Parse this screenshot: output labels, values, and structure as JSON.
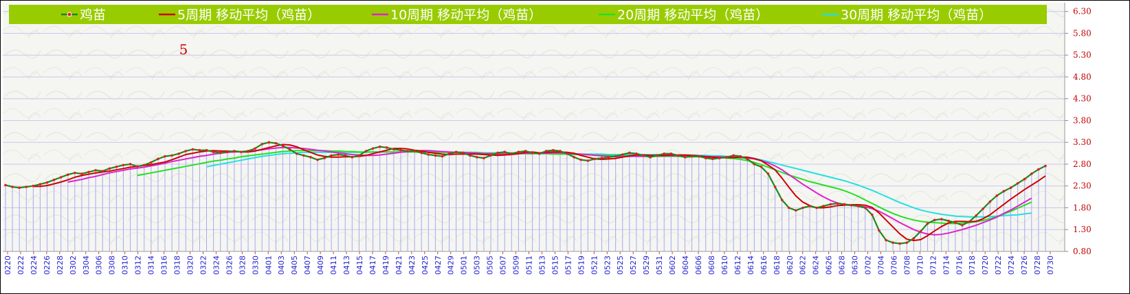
{
  "chart_data": {
    "type": "line",
    "title": "",
    "xlabel": "",
    "ylabel": "",
    "ylim": [
      0.8,
      6.5
    ],
    "y_ticks": [
      "0.80",
      "1.30",
      "1.80",
      "2.30",
      "2.80",
      "3.30",
      "3.80",
      "4.30",
      "4.80",
      "5.30",
      "5.80",
      "6.30"
    ],
    "y_tick_values": [
      0.8,
      1.3,
      1.8,
      2.3,
      2.8,
      3.3,
      3.8,
      4.3,
      4.8,
      5.3,
      5.8,
      6.3
    ],
    "grid": true,
    "legend_position": "top",
    "annotation": "5",
    "x_tick_labels": [
      "0220",
      "0222",
      "0224",
      "0226",
      "0228",
      "0302",
      "0304",
      "0306",
      "0308",
      "0310",
      "0312",
      "0314",
      "0316",
      "0318",
      "0320",
      "0322",
      "0324",
      "0326",
      "0328",
      "0330",
      "0401",
      "0403",
      "0405",
      "0407",
      "0409",
      "0411",
      "0413",
      "0415",
      "0417",
      "0419",
      "0421",
      "0423",
      "0425",
      "0427",
      "0429",
      "0501",
      "0503",
      "0505",
      "0507",
      "0509",
      "0511",
      "0513",
      "0515",
      "0517",
      "0519",
      "0521",
      "0523",
      "0525",
      "0527",
      "0529",
      "0531",
      "0602",
      "0604",
      "0606",
      "0608",
      "0610",
      "0612",
      "0614",
      "0616",
      "0618",
      "0620",
      "0622",
      "0624",
      "0626",
      "0628",
      "0630",
      "0702",
      "0704",
      "0706",
      "0708",
      "0710",
      "0712",
      "0714",
      "0716",
      "0718",
      "0720",
      "0722",
      "0724",
      "0726",
      "0728",
      "0730"
    ],
    "series": [
      {
        "name": "鸡苗",
        "color": "#1a8a1a",
        "marker_color": "#e02020",
        "values": [
          2.32,
          2.28,
          2.26,
          2.28,
          2.3,
          2.34,
          2.38,
          2.44,
          2.5,
          2.56,
          2.6,
          2.58,
          2.62,
          2.66,
          2.64,
          2.7,
          2.74,
          2.78,
          2.8,
          2.75,
          2.78,
          2.84,
          2.92,
          2.98,
          3.0,
          3.04,
          3.1,
          3.14,
          3.12,
          3.12,
          3.08,
          3.06,
          3.08,
          3.1,
          3.08,
          3.1,
          3.16,
          3.26,
          3.3,
          3.28,
          3.22,
          3.14,
          3.04,
          3.0,
          2.96,
          2.9,
          2.94,
          3.0,
          3.02,
          3.0,
          2.96,
          3.0,
          3.1,
          3.16,
          3.2,
          3.18,
          3.14,
          3.12,
          3.1,
          3.1,
          3.06,
          3.02,
          3.0,
          2.98,
          3.04,
          3.08,
          3.06,
          3.0,
          2.96,
          2.94,
          3.0,
          3.06,
          3.08,
          3.04,
          3.08,
          3.1,
          3.06,
          3.04,
          3.1,
          3.12,
          3.1,
          3.04,
          2.96,
          2.9,
          2.88,
          2.92,
          2.94,
          2.96,
          2.98,
          3.02,
          3.06,
          3.04,
          3.0,
          2.96,
          3.0,
          3.04,
          3.04,
          3.0,
          2.96,
          2.98,
          2.98,
          2.94,
          2.92,
          2.94,
          2.96,
          3.0,
          2.98,
          2.92,
          2.8,
          2.74,
          2.58,
          2.28,
          1.98,
          1.8,
          1.74,
          1.8,
          1.84,
          1.8,
          1.84,
          1.88,
          1.9,
          1.88,
          1.86,
          1.84,
          1.8,
          1.64,
          1.28,
          1.06,
          1.0,
          0.98,
          1.0,
          1.1,
          1.26,
          1.44,
          1.52,
          1.54,
          1.5,
          1.46,
          1.4,
          1.48,
          1.62,
          1.78,
          1.94,
          2.08,
          2.18,
          2.26,
          2.36,
          2.46,
          2.58,
          2.68,
          2.76
        ]
      },
      {
        "name": "5周期 移动平均（鸡苗）",
        "color": "#cc0000",
        "values": [
          null,
          null,
          null,
          null,
          2.29,
          2.29,
          2.31,
          2.35,
          2.39,
          2.44,
          2.5,
          2.54,
          2.57,
          2.6,
          2.62,
          2.64,
          2.67,
          2.7,
          2.73,
          2.75,
          2.77,
          2.79,
          2.82,
          2.85,
          2.9,
          2.96,
          3.02,
          3.05,
          3.08,
          3.1,
          3.11,
          3.1,
          3.1,
          3.09,
          3.08,
          3.08,
          3.1,
          3.14,
          3.18,
          3.22,
          3.25,
          3.24,
          3.2,
          3.13,
          3.07,
          3.01,
          2.98,
          2.96,
          2.96,
          2.97,
          2.97,
          2.98,
          3.0,
          3.04,
          3.08,
          3.12,
          3.16,
          3.16,
          3.15,
          3.12,
          3.1,
          3.07,
          3.05,
          3.03,
          3.02,
          3.03,
          3.03,
          3.03,
          3.03,
          3.02,
          3.01,
          3.0,
          3.01,
          3.02,
          3.04,
          3.07,
          3.08,
          3.06,
          3.07,
          3.08,
          3.08,
          3.07,
          3.05,
          3.0,
          2.96,
          2.92,
          2.91,
          2.92,
          2.93,
          2.96,
          2.99,
          3.01,
          3.01,
          3.0,
          3.0,
          3.0,
          3.01,
          3.01,
          3.01,
          3.0,
          2.99,
          2.97,
          2.96,
          2.95,
          2.95,
          2.95,
          2.96,
          2.96,
          2.93,
          2.88,
          2.78,
          2.67,
          2.48,
          2.27,
          2.07,
          1.93,
          1.85,
          1.8,
          1.8,
          1.82,
          1.85,
          1.86,
          1.87,
          1.87,
          1.86,
          1.81,
          1.68,
          1.52,
          1.36,
          1.2,
          1.08,
          1.05,
          1.07,
          1.16,
          1.27,
          1.37,
          1.45,
          1.49,
          1.49,
          1.48,
          1.49,
          1.55,
          1.64,
          1.76,
          1.88,
          2.0,
          2.11,
          2.22,
          2.32,
          2.42,
          2.53
        ]
      },
      {
        "name": "10周期 移动平均（鸡苗）",
        "color": "#dd22cc",
        "values": [
          null,
          null,
          null,
          null,
          null,
          null,
          null,
          null,
          null,
          2.39,
          2.42,
          2.45,
          2.49,
          2.52,
          2.56,
          2.6,
          2.63,
          2.66,
          2.69,
          2.71,
          2.73,
          2.76,
          2.79,
          2.82,
          2.86,
          2.89,
          2.92,
          2.95,
          2.98,
          3.0,
          3.03,
          3.05,
          3.07,
          3.08,
          3.09,
          3.1,
          3.11,
          3.13,
          3.15,
          3.17,
          3.18,
          3.18,
          3.17,
          3.16,
          3.14,
          3.12,
          3.1,
          3.08,
          3.06,
          3.04,
          3.02,
          3.01,
          3.0,
          3.0,
          3.01,
          3.03,
          3.05,
          3.07,
          3.09,
          3.1,
          3.11,
          3.11,
          3.1,
          3.09,
          3.08,
          3.07,
          3.07,
          3.06,
          3.05,
          3.04,
          3.04,
          3.03,
          3.03,
          3.03,
          3.04,
          3.05,
          3.05,
          3.05,
          3.05,
          3.06,
          3.06,
          3.05,
          3.04,
          3.03,
          3.02,
          3.0,
          2.99,
          2.98,
          2.97,
          2.97,
          2.98,
          2.98,
          2.98,
          2.98,
          2.99,
          2.99,
          2.99,
          2.99,
          2.99,
          2.99,
          2.99,
          2.98,
          2.97,
          2.97,
          2.96,
          2.96,
          2.95,
          2.94,
          2.92,
          2.88,
          2.83,
          2.76,
          2.67,
          2.56,
          2.45,
          2.34,
          2.24,
          2.14,
          2.05,
          1.97,
          1.91,
          1.87,
          1.85,
          1.84,
          1.82,
          1.78,
          1.72,
          1.64,
          1.55,
          1.46,
          1.38,
          1.3,
          1.24,
          1.2,
          1.18,
          1.19,
          1.22,
          1.26,
          1.3,
          1.35,
          1.4,
          1.46,
          1.52,
          1.59,
          1.67,
          1.75,
          1.84,
          1.93,
          2.02
        ]
      },
      {
        "name": "20周期 移动平均（鸡苗）",
        "color": "#22e022",
        "values": [
          null,
          null,
          null,
          null,
          null,
          null,
          null,
          null,
          null,
          null,
          null,
          null,
          null,
          null,
          null,
          null,
          null,
          null,
          null,
          2.54,
          2.57,
          2.6,
          2.63,
          2.66,
          2.69,
          2.72,
          2.75,
          2.78,
          2.81,
          2.84,
          2.87,
          2.89,
          2.92,
          2.94,
          2.97,
          2.99,
          3.01,
          3.03,
          3.05,
          3.07,
          3.09,
          3.1,
          3.11,
          3.11,
          3.11,
          3.11,
          3.11,
          3.1,
          3.1,
          3.09,
          3.09,
          3.08,
          3.08,
          3.08,
          3.08,
          3.08,
          3.08,
          3.08,
          3.08,
          3.08,
          3.08,
          3.07,
          3.07,
          3.07,
          3.07,
          3.07,
          3.06,
          3.06,
          3.06,
          3.05,
          3.05,
          3.05,
          3.05,
          3.04,
          3.04,
          3.04,
          3.04,
          3.04,
          3.04,
          3.03,
          3.03,
          3.03,
          3.02,
          3.02,
          3.01,
          3.01,
          3.0,
          3.0,
          2.99,
          2.99,
          2.99,
          2.98,
          2.98,
          2.98,
          2.98,
          2.98,
          2.98,
          2.98,
          2.97,
          2.97,
          2.97,
          2.96,
          2.96,
          2.95,
          2.94,
          2.93,
          2.91,
          2.88,
          2.84,
          2.79,
          2.73,
          2.67,
          2.61,
          2.55,
          2.5,
          2.45,
          2.4,
          2.36,
          2.32,
          2.28,
          2.24,
          2.19,
          2.13,
          2.06,
          1.98,
          1.9,
          1.82,
          1.74,
          1.67,
          1.61,
          1.56,
          1.52,
          1.49,
          1.47,
          1.46,
          1.45,
          1.44,
          1.44,
          1.45,
          1.46,
          1.48,
          1.51,
          1.55,
          1.6,
          1.66,
          1.72,
          1.79,
          1.86,
          1.93
        ]
      },
      {
        "name": "30周期 移动平均（鸡苗）",
        "color": "#22e0e0",
        "values": [
          null,
          null,
          null,
          null,
          null,
          null,
          null,
          null,
          null,
          null,
          null,
          null,
          null,
          null,
          null,
          null,
          null,
          null,
          null,
          null,
          null,
          null,
          null,
          null,
          null,
          null,
          null,
          null,
          null,
          2.74,
          2.77,
          2.8,
          2.83,
          2.86,
          2.89,
          2.92,
          2.95,
          2.98,
          3.0,
          3.02,
          3.04,
          3.05,
          3.06,
          3.07,
          3.07,
          3.07,
          3.07,
          3.07,
          3.07,
          3.07,
          3.07,
          3.07,
          3.07,
          3.08,
          3.08,
          3.08,
          3.08,
          3.08,
          3.08,
          3.08,
          3.08,
          3.08,
          3.08,
          3.08,
          3.07,
          3.07,
          3.07,
          3.07,
          3.07,
          3.06,
          3.06,
          3.06,
          3.06,
          3.06,
          3.05,
          3.05,
          3.05,
          3.05,
          3.05,
          3.04,
          3.04,
          3.04,
          3.04,
          3.03,
          3.03,
          3.03,
          3.03,
          3.02,
          3.02,
          3.02,
          3.02,
          3.02,
          3.02,
          3.02,
          3.02,
          3.02,
          3.02,
          3.01,
          3.01,
          3.01,
          3.0,
          3.0,
          2.99,
          2.99,
          2.98,
          2.97,
          2.96,
          2.95,
          2.93,
          2.9,
          2.86,
          2.82,
          2.78,
          2.74,
          2.7,
          2.66,
          2.62,
          2.58,
          2.54,
          2.5,
          2.46,
          2.42,
          2.37,
          2.32,
          2.26,
          2.2,
          2.13,
          2.06,
          1.99,
          1.92,
          1.86,
          1.8,
          1.75,
          1.71,
          1.68,
          1.65,
          1.63,
          1.61,
          1.6,
          1.59,
          1.59,
          1.59,
          1.6,
          1.61,
          1.62,
          1.63,
          1.64,
          1.66,
          1.68
        ]
      }
    ]
  }
}
